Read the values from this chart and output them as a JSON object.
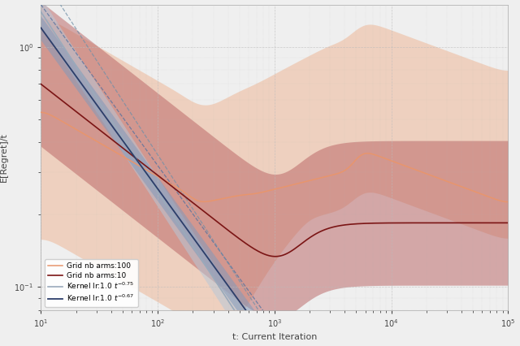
{
  "title": "",
  "xlabel": "t: Current Iteration",
  "ylabel": "E[Regret]/t",
  "xmin": 10,
  "xmax": 100000,
  "ymin": 0.08,
  "ymax": 1.5,
  "legend_entries": [
    "Grid nb arms:10",
    "Grid nb arms:100",
    "Kernel lr:1.0 $t^{-0.67}$",
    "Kernel lr:1.0 $t^{-0.75}$"
  ],
  "colors": {
    "grid10_line": "#7B1515",
    "grid10_fill": "#B86060",
    "grid100_line": "#E8956D",
    "grid100_fill": "#EEB898",
    "kernel067_line": "#2C3E6A",
    "kernel067_fill": "#8099BB",
    "kernel075_line": "#9AAABB",
    "kernel075_fill": "#B8C8D8",
    "kernel067_dash": "#5070A0",
    "kernel075_dash": "#7090A8"
  },
  "background": "#F0F0F0",
  "grid_color": "#BBBBBB"
}
